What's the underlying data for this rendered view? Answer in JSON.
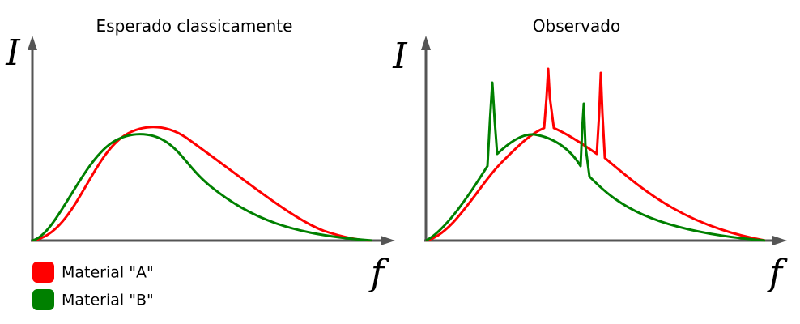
{
  "panels": [
    {
      "title": "Esperado classicamente",
      "y_axis_label": "I",
      "x_axis_label": "f"
    },
    {
      "title": "Observado",
      "y_axis_label": "I",
      "x_axis_label": "f"
    }
  ],
  "legend": [
    {
      "label": "Material \"A\"",
      "color": "#ff0000"
    },
    {
      "label": "Material \"B\"",
      "color": "#008000"
    }
  ]
}
